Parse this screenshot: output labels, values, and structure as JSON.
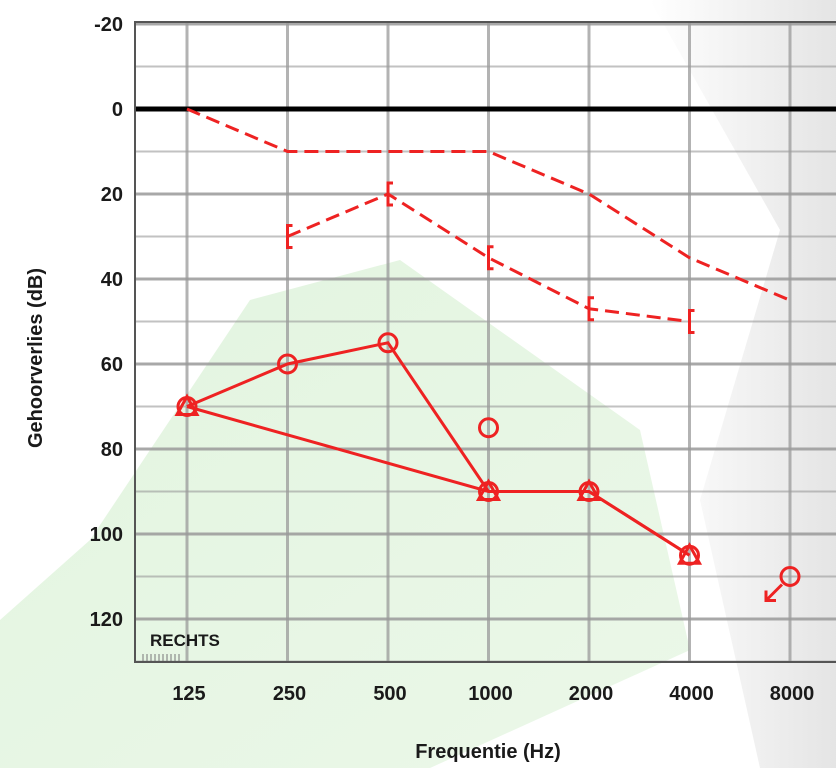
{
  "chart_data": {
    "type": "line",
    "title": "",
    "side_label": "RECHTS",
    "xlabel": "Frequentie (Hz)",
    "ylabel": "Gehoorverlies (dB)",
    "x_scale": "log2",
    "y_inverted": true,
    "ylim": [
      -20,
      130
    ],
    "y_ticks": [
      -20,
      0,
      20,
      40,
      60,
      80,
      100,
      120
    ],
    "categories": [
      "125",
      "250",
      "500",
      "1000",
      "2000",
      "4000",
      "8000"
    ],
    "colors": {
      "data": "#ee2222",
      "zero_line": "#000000",
      "grid": "#9a9a9a"
    },
    "grid": true,
    "legend": "none",
    "series": [
      {
        "line": "dashed",
        "marker": "none",
        "x": [
          125,
          250,
          500,
          1000,
          2000,
          4000,
          8000
        ],
        "values": [
          0,
          10,
          10,
          10,
          20,
          35,
          45
        ]
      },
      {
        "line": "dashed",
        "marker": "bracket-open-left",
        "x": [
          250,
          500,
          1000,
          2000,
          4000
        ],
        "values": [
          30,
          20,
          35,
          47,
          50
        ]
      },
      {
        "line": "solid",
        "marker": "circle",
        "x": [
          125,
          250,
          500,
          1000
        ],
        "values": [
          70,
          60,
          55,
          90
        ]
      },
      {
        "line": "none",
        "marker": "circle",
        "x": [
          1000
        ],
        "values": [
          75
        ]
      },
      {
        "line": "solid",
        "marker": "triangle",
        "x": [
          125,
          1000,
          2000,
          4000
        ],
        "values": [
          70,
          90,
          90,
          105
        ]
      },
      {
        "line": "solid",
        "marker": "circle",
        "x": [
          2000,
          4000
        ],
        "values": [
          90,
          105
        ]
      },
      {
        "line": "none",
        "marker": "circle-no-response",
        "x": [
          8000
        ],
        "values": [
          110
        ]
      }
    ]
  }
}
